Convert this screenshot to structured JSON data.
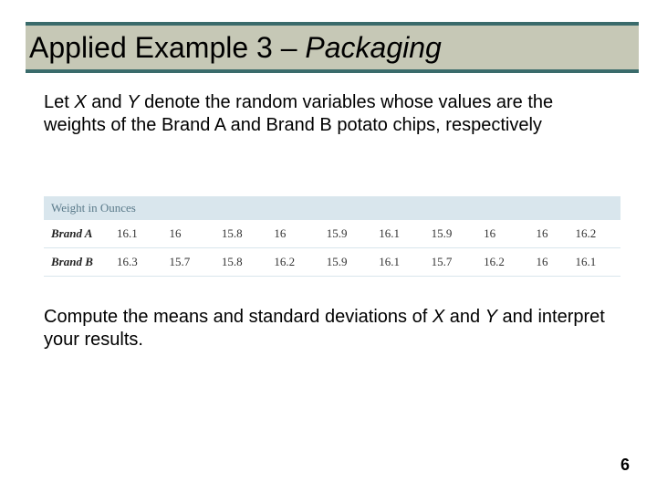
{
  "title": {
    "plain": "Applied Example 3 – ",
    "italic": "Packaging"
  },
  "intro": {
    "p1a": "Let ",
    "x": "X",
    "p1b": " and ",
    "y": "Y",
    "p1c": " denote the random variables whose values are the weights of the Brand A and Brand B potato chips, respectively"
  },
  "table": {
    "header": "Weight in Ounces",
    "rows": [
      {
        "label": "Brand A",
        "values": [
          "16.1",
          "16",
          "15.8",
          "16",
          "15.9",
          "16.1",
          "15.9",
          "16",
          "16",
          "16.2"
        ]
      },
      {
        "label": "Brand B",
        "values": [
          "16.3",
          "15.7",
          "15.8",
          "16.2",
          "15.9",
          "16.1",
          "15.7",
          "16.2",
          "16",
          "16.1"
        ]
      }
    ],
    "columns": 10
  },
  "outro": {
    "p1a": "Compute the means and standard deviations of ",
    "x": "X",
    "p1b": " and ",
    "y": "Y",
    "p1c": " and interpret your results."
  },
  "page_number": "6",
  "colors": {
    "rule": "#3a6b6b",
    "band": "#c6c8b6",
    "table_header_bg": "#d9e6ed",
    "row_border": "#d9e6ed"
  }
}
